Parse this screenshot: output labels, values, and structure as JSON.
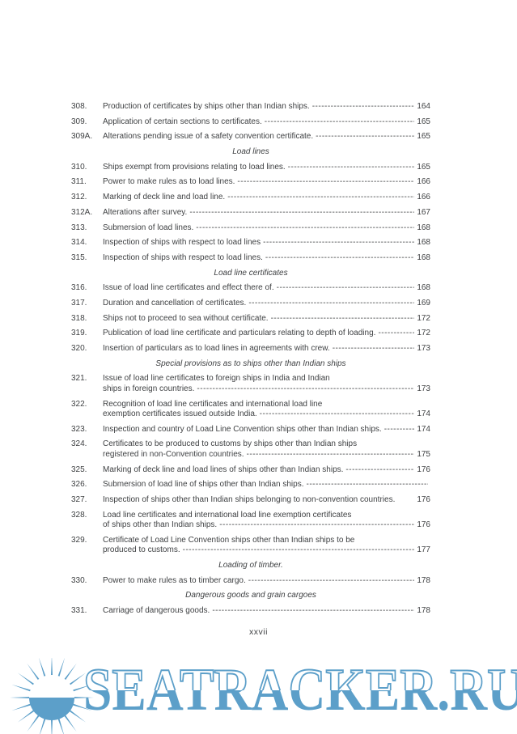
{
  "document": {
    "footer_page_label": "xxvii",
    "text_color": "#3f4143"
  },
  "toc": {
    "entries": [
      {
        "type": "item",
        "num": "308.",
        "lines": [
          "Production of certificates by ships other than Indian ships."
        ],
        "leader": "dashes",
        "page": "164"
      },
      {
        "type": "item",
        "num": "309.",
        "lines": [
          "Application of certain sections to certificates."
        ],
        "leader": "dashes",
        "page": "165"
      },
      {
        "type": "item",
        "num": "309A.",
        "lines": [
          "Alterations pending issue of a safety convention certificate."
        ],
        "leader": "dashes",
        "page": "165"
      },
      {
        "type": "heading",
        "text": "Load lines"
      },
      {
        "type": "item",
        "num": "310.",
        "lines": [
          "Ships exempt from provisions relating to load lines."
        ],
        "leader": "dashes",
        "page": "165"
      },
      {
        "type": "item",
        "num": "311.",
        "lines": [
          "Power to make rules as to load lines."
        ],
        "leader": "dashes",
        "page": "166"
      },
      {
        "type": "item",
        "num": "312.",
        "lines": [
          "Marking of deck line and load line."
        ],
        "leader": "dashes",
        "page": "166"
      },
      {
        "type": "item",
        "num": "312A.",
        "lines": [
          "Alterations after survey."
        ],
        "leader": "dashes",
        "page": "167"
      },
      {
        "type": "item",
        "num": "313.",
        "lines": [
          "Submersion of load lines."
        ],
        "leader": "dashes",
        "page": "168"
      },
      {
        "type": "item",
        "num": "314.",
        "lines": [
          "Inspection of ships with respect to load lines"
        ],
        "leader": "dashes",
        "page": "168"
      },
      {
        "type": "item",
        "num": "315.",
        "lines": [
          "Inspection of ships with respect to load lines."
        ],
        "leader": "dashes",
        "page": "168"
      },
      {
        "type": "heading",
        "text": "Load line certificates"
      },
      {
        "type": "item",
        "num": "316.",
        "lines": [
          "Issue of load line certificates and effect there of."
        ],
        "leader": "dashes",
        "page": "168"
      },
      {
        "type": "item",
        "num": "317.",
        "lines": [
          "Duration and cancellation of certificates."
        ],
        "leader": "dashes",
        "page": "169"
      },
      {
        "type": "item",
        "num": "318.",
        "lines": [
          "Ships not to proceed to sea without certificate."
        ],
        "leader": "dashes",
        "page": "172"
      },
      {
        "type": "item",
        "num": "319.",
        "lines": [
          "Publication of load line certificate and particulars relating to depth of loading."
        ],
        "leader": "dashes",
        "page": "172"
      },
      {
        "type": "item",
        "num": "320.",
        "lines": [
          "Insertion of particulars as to load lines in agreements with crew."
        ],
        "leader": "dashes",
        "page": "173"
      },
      {
        "type": "heading",
        "text": "Special provisions as to ships other than Indian ships"
      },
      {
        "type": "item",
        "num": "321.",
        "lines": [
          "Issue of load line certificates to foreign ships in India and Indian",
          "ships in foreign countries."
        ],
        "leader": "dashes",
        "page": "173"
      },
      {
        "type": "item",
        "num": "322.",
        "lines": [
          "Recognition of load line certificates and international load line",
          "exemption certificates issued outside India."
        ],
        "leader": "dashes",
        "page": "174"
      },
      {
        "type": "item",
        "num": "323.",
        "lines": [
          "Inspection and country of Load Line Convention ships other than Indian ships."
        ],
        "leader": "dashes",
        "page": "174"
      },
      {
        "type": "item",
        "num": "324.",
        "lines": [
          "Certificates to be produced to customs by ships other than Indian ships",
          "registered in non-Convention countries."
        ],
        "leader": "dashes",
        "page": "175"
      },
      {
        "type": "item",
        "num": "325.",
        "lines": [
          "Marking of deck line and load lines of ships other than Indian ships."
        ],
        "leader": "dashes",
        "page": "176"
      },
      {
        "type": "item",
        "num": "326.",
        "lines": [
          "Submersion of load line of ships other than Indian ships."
        ],
        "leader": "dashes",
        "page": ""
      },
      {
        "type": "item",
        "num": "327.",
        "lines": [
          "Inspection of ships other than Indian ships belonging to non-convention countries."
        ],
        "leader": "none",
        "page": "176"
      },
      {
        "type": "item",
        "num": "328.",
        "lines": [
          "Load line certificates and international load line exemption certificates",
          "of ships other than Indian ships."
        ],
        "leader": "dashes",
        "page": "176"
      },
      {
        "type": "item",
        "num": "329.",
        "lines": [
          "Certificate of Load Line Convention ships other than Indian ships to be",
          "produced to customs."
        ],
        "leader": "dashes",
        "page": "177"
      },
      {
        "type": "heading",
        "text": "Loading of timber."
      },
      {
        "type": "item",
        "num": "330.",
        "lines": [
          "Power to make rules as to timber cargo."
        ],
        "leader": "dashes",
        "page": "178"
      },
      {
        "type": "heading",
        "text": "Dangerous goods and grain cargoes"
      },
      {
        "type": "item",
        "num": "331.",
        "lines": [
          "Carriage of dangerous goods."
        ],
        "leader": "dashes",
        "page": "178"
      }
    ]
  },
  "watermark": {
    "text": "SEATRACKER.RU",
    "blue": "#5c9fc9",
    "sun_icon": "sun-with-horizon"
  }
}
